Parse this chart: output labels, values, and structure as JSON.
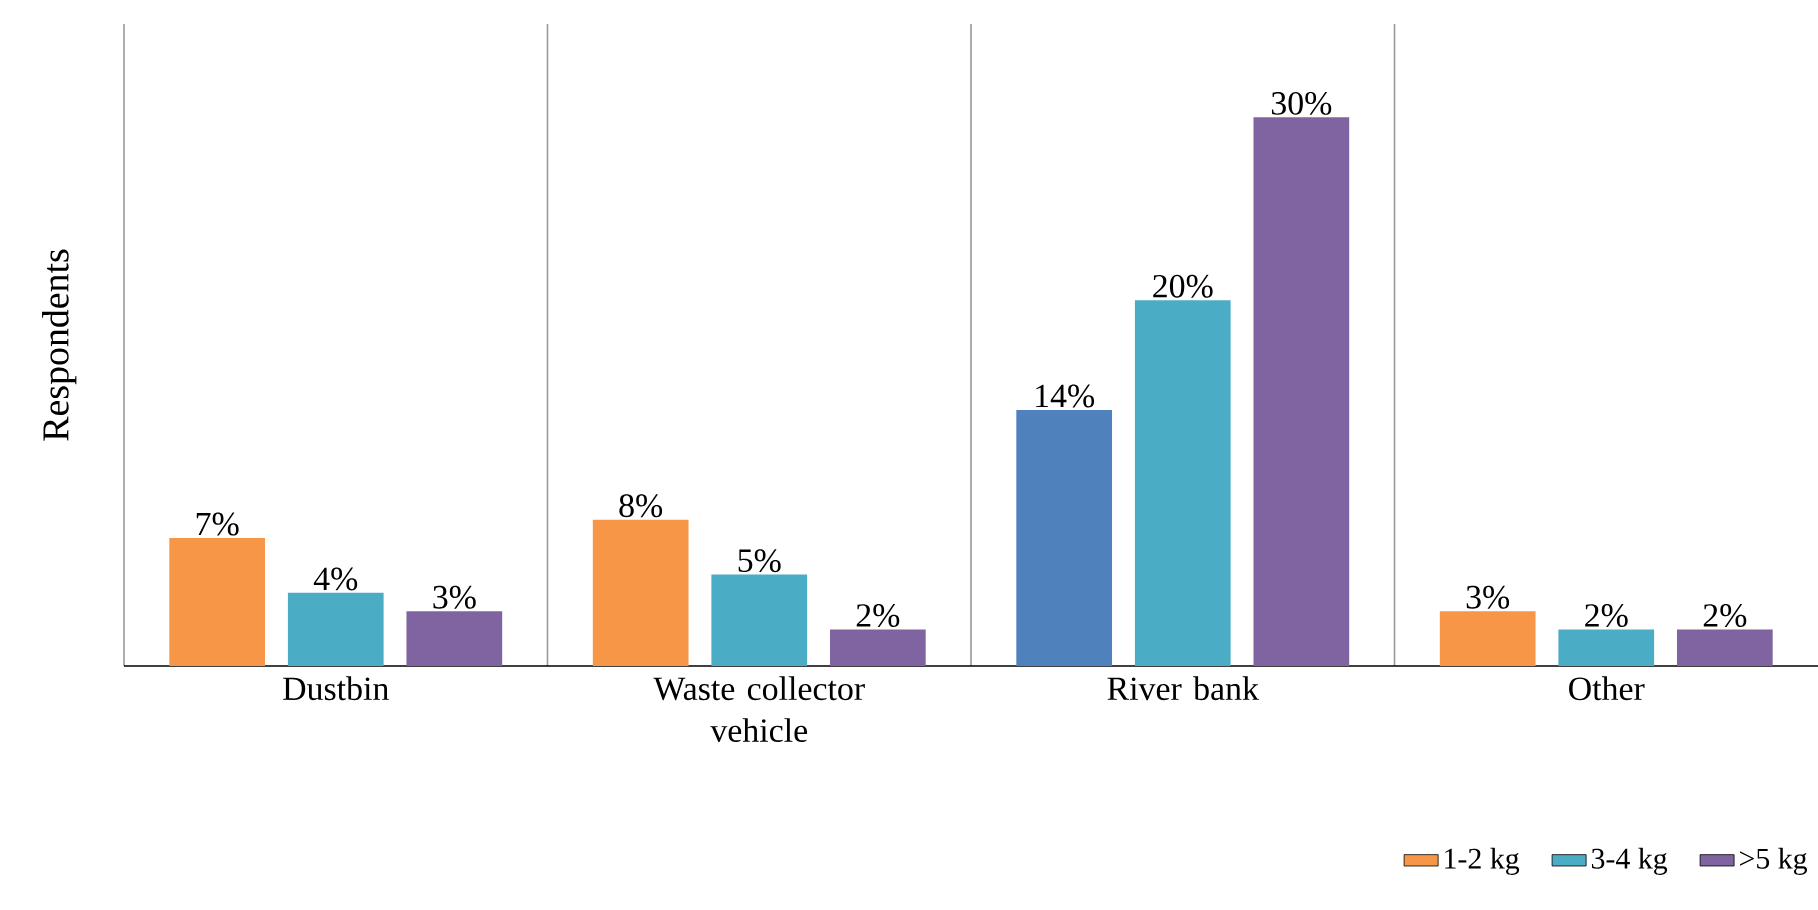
{
  "chart_data": {
    "type": "bar",
    "ylabel": "Respondents",
    "categories": [
      "Dustbin",
      "Waste collector vehicle",
      "River bank",
      "Other"
    ],
    "series": [
      {
        "name": "1-2 kg",
        "color": "#f79646",
        "colors": [
          "#f79646",
          "#f79646",
          "#4f81bd",
          "#f79646"
        ],
        "values": [
          7,
          8,
          14,
          3
        ],
        "value_labels": [
          "7%",
          "8%",
          "14%",
          "3%"
        ]
      },
      {
        "name": "3-4 kg",
        "color": "#4bacc6",
        "colors": [
          "#4bacc6",
          "#4bacc6",
          "#4bacc6",
          "#4bacc6"
        ],
        "values": [
          4,
          5,
          20,
          2
        ],
        "value_labels": [
          "4%",
          "5%",
          "20%",
          "2%"
        ]
      },
      {
        "name": ">5 kg",
        "color": "#8064a2",
        "colors": [
          "#8064a2",
          "#8064a2",
          "#8064a2",
          "#8064a2"
        ],
        "values": [
          3,
          2,
          30,
          2
        ],
        "value_labels": [
          "3%",
          "2%",
          "30%",
          "2%"
        ]
      }
    ],
    "legend": "bottom right"
  }
}
